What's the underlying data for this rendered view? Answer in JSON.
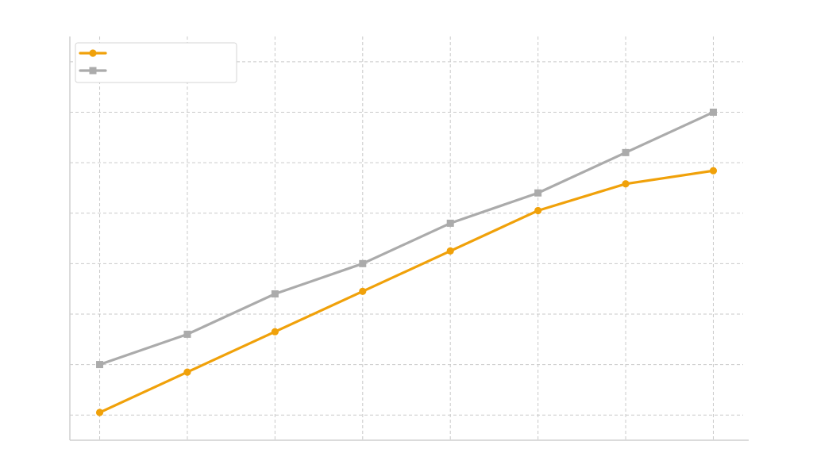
{
  "chart_data": {
    "type": "line",
    "title": "",
    "xlabel": "",
    "ylabel": "",
    "x": [
      1,
      2,
      3,
      4,
      5,
      6,
      7,
      8
    ],
    "xlim": [
      0.66,
      8.34
    ],
    "ylim": [
      0.5,
      8.5
    ],
    "grid": true,
    "legend": {
      "placement": "top-left"
    },
    "series": [
      {
        "name": "",
        "color": "#F0A10A",
        "marker": "circle",
        "values": [
          1.05,
          1.85,
          2.65,
          3.45,
          4.25,
          5.05,
          5.58,
          5.84
        ]
      },
      {
        "name": "",
        "color": "#ABABAB",
        "marker": "square",
        "values": [
          2.0,
          2.6,
          3.4,
          4.0,
          4.8,
          5.4,
          6.2,
          7.0
        ]
      }
    ]
  }
}
